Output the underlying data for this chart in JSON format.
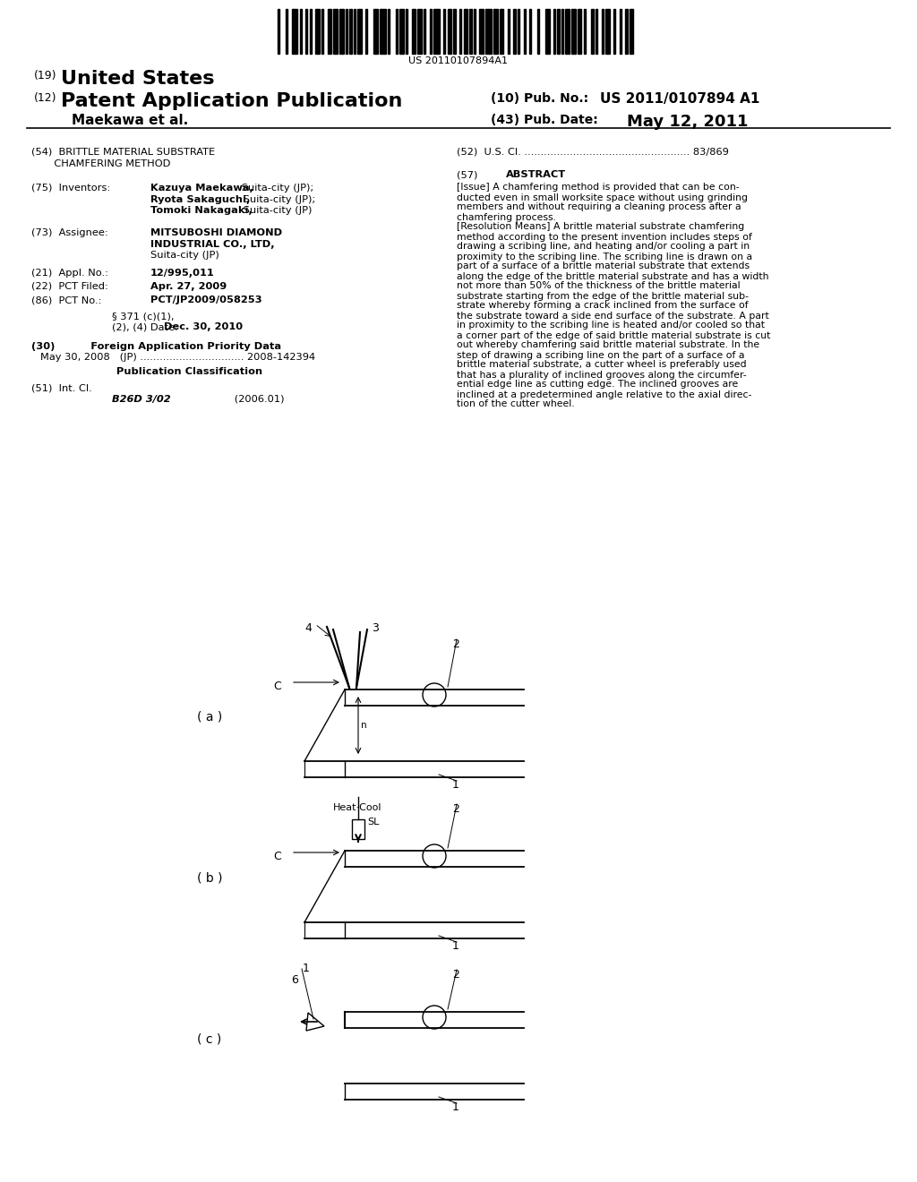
{
  "bg_color": "#ffffff",
  "barcode_text": "US 20110107894A1",
  "title_line1": "(19) United States",
  "title_line2": "(12) Patent Application Publication",
  "pub_no_label": "(10) Pub. No.:",
  "pub_no_value": "US 2011/0107894 A1",
  "authors": "Maekawa et al.",
  "pub_date_label": "(43) Pub. Date:",
  "pub_date_value": "May 12, 2011",
  "field52_label": "(52)  U.S. Cl. ................................................... 83/869",
  "abstract_text": "[Issue] A chamfering method is provided that can be con-\nducted even in small worksite space without using grinding\nmembers and without requiring a cleaning process after a\nchamfering process.\n[Resolution Means] A brittle material substrate chamfering\nmethod according to the present invention includes steps of\ndrawing a scribing line, and heating and/or cooling a part in\nproximity to the scribing line. The scribing line is drawn on a\npart of a surface of a brittle material substrate that extends\nalong the edge of the brittle material substrate and has a width\nnot more than 50% of the thickness of the brittle material\nsubstrate starting from the edge of the brittle material sub-\nstrate whereby forming a crack inclined from the surface of\nthe substrate toward a side end surface of the substrate. A part\nin proximity to the scribing line is heated and/or cooled so that\na corner part of the edge of said brittle material substrate is cut\nout whereby chamfering said brittle material substrate. In the\nstep of drawing a scribing line on the part of a surface of a\nbrittle material substrate, a cutter wheel is preferably used\nthat has a plurality of inclined grooves along the circumfer-\nential edge line as cutting edge. The inclined grooves are\ninclined at a predetermined angle relative to the axial direc-\ntion of the cutter wheel."
}
